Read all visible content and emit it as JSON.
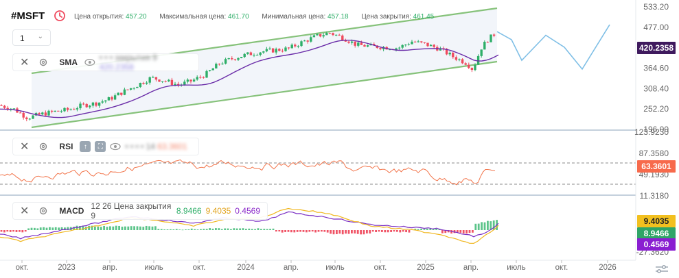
{
  "header": {
    "ticker": "#MSFT",
    "stats": [
      {
        "label": "Цена открытия:",
        "value": "457.20"
      },
      {
        "label": "Максимальная цена:",
        "value": "461.70"
      },
      {
        "label": "Минимальная цена:",
        "value": "457.18"
      },
      {
        "label": "Цена закрытия:",
        "value": "461.45"
      }
    ],
    "interval": "1"
  },
  "legends": {
    "sma": {
      "name": "SMA",
      "blurred": "• • • закрытия 9",
      "blurred_value": "420.2358"
    },
    "rsi": {
      "name": "RSI",
      "blurred": "• • • • 14",
      "blurred_value": "63.3601"
    },
    "macd": {
      "name": "MACD",
      "params": "12 26 Цена закрытия 9",
      "v1": "8.9466",
      "v2": "9.4035",
      "v3": "0.4569"
    }
  },
  "colors": {
    "up": "#2eae68",
    "down": "#ef4a5e",
    "sma": "#6a2ca8",
    "channel": "#86c27a",
    "forecast": "#7fbfe6",
    "rsi": "#f2744a",
    "macd": "#7b2fc4",
    "signal": "#f0b61d",
    "badge_sma": "#3f1a5e",
    "badge_rsi": "#f76a4c",
    "badge_macd_signal": "#f2c01f",
    "badge_macd": "#2fa567",
    "badge_hist": "#8a1ed1"
  },
  "price_axis": [
    "533.20",
    "477.00",
    "420.2358",
    "364.60",
    "308.40",
    "252.20",
    "196.00"
  ],
  "rsi_axis": [
    "123.9230",
    "87.3580",
    "63.3601",
    "49.1930",
    "11.3180"
  ],
  "macd_axis": [
    "9.4035",
    "8.9466",
    "0.4569",
    "-27.3620"
  ],
  "time_axis": [
    "окт.",
    "2023",
    "апр.",
    "июль",
    "окт.",
    "2024",
    "апр.",
    "июль",
    "окт.",
    "2025",
    "апр.",
    "июль",
    "окт.",
    "2026"
  ],
  "chart_data": [
    {
      "type": "candlestick",
      "series": [
        {
          "name": "SMA",
          "last": 420.2358
        },
        {
          "name": "Цена закрытия",
          "last": 461.45
        }
      ],
      "ylim": [
        196.0,
        533.2
      ]
    },
    {
      "type": "line",
      "series": [
        {
          "name": "RSI",
          "last": 63.3601
        }
      ],
      "ylim": [
        11.318,
        123.923
      ]
    },
    {
      "type": "bar",
      "series": [
        {
          "name": "MACD",
          "last": 8.9466
        },
        {
          "name": "Signal",
          "last": 9.4035
        },
        {
          "name": "Histogram",
          "last": 0.4569
        }
      ],
      "ylim": [
        -27.362,
        15
      ]
    }
  ]
}
